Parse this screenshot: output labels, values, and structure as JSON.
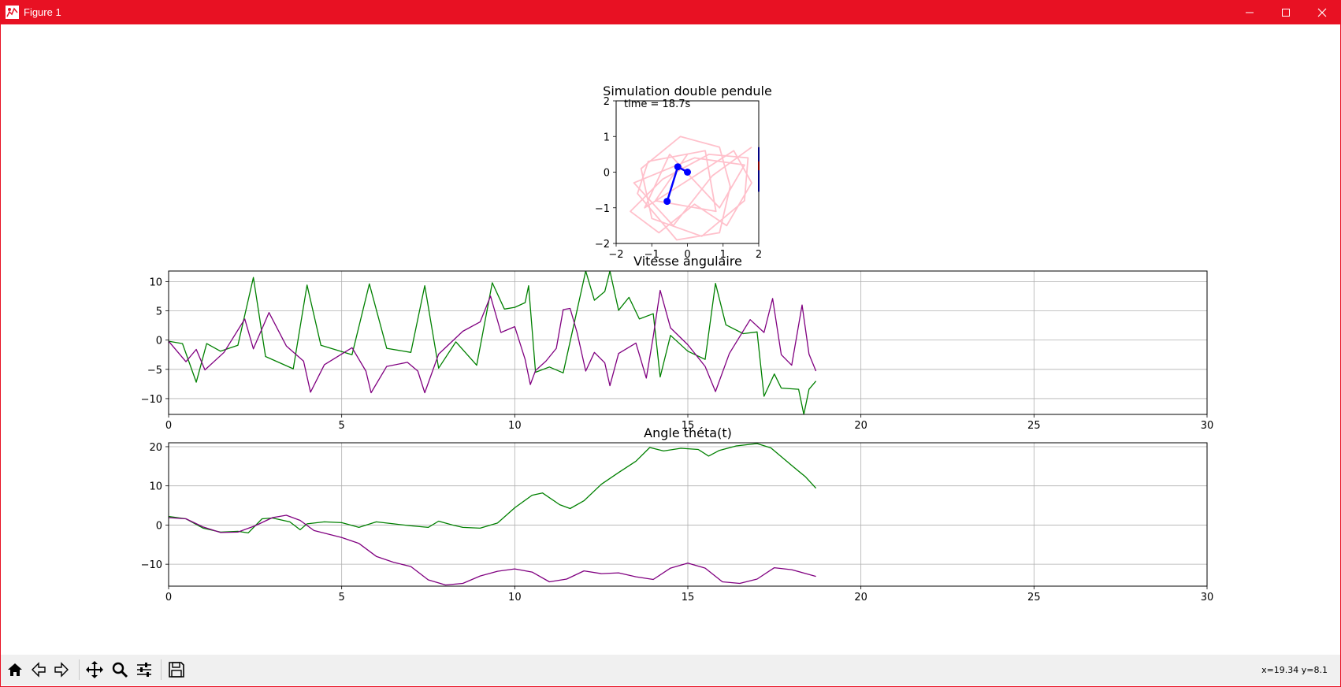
{
  "window": {
    "title": "Figure 1",
    "controls": {
      "minimize": "minimize-icon",
      "maximize": "maximize-icon",
      "close": "close-icon"
    },
    "accent": "#e81123"
  },
  "toolbar": {
    "buttons": [
      "home-icon",
      "back-icon",
      "forward-icon",
      "pan-icon",
      "zoom-icon",
      "configure-subplots-icon",
      "save-icon"
    ],
    "coords": "x=19.34 y=8.1"
  },
  "chart_data": [
    {
      "type": "line",
      "title": "Simulation double pendule",
      "annotation": "time = 18.7s",
      "xlim": [
        -2,
        2
      ],
      "ylim": [
        -2,
        2
      ],
      "xticks": [
        "−2",
        "−1",
        "0",
        "1",
        "2"
      ],
      "yticks": [
        "2",
        "1",
        "0",
        "−1",
        "−2"
      ],
      "grid": false,
      "series": [
        {
          "color": "#ffc0cb",
          "points": [
            [
              0,
              0.5
            ],
            [
              -0.9,
              -0.8
            ],
            [
              0.8,
              -1.1
            ],
            [
              0.5,
              0.6
            ],
            [
              -1.1,
              0.3
            ],
            [
              -1.4,
              -0.6
            ],
            [
              -0.3,
              -1.9
            ],
            [
              0.9,
              -1.7
            ],
            [
              1.2,
              -0.4
            ],
            [
              0.9,
              0.7
            ],
            [
              -0.2,
              1.0
            ],
            [
              -1.3,
              0.1
            ],
            [
              -1.0,
              -1.3
            ],
            [
              0.4,
              -1.8
            ],
            [
              1.6,
              -0.8
            ],
            [
              1.7,
              0.4
            ],
            [
              0.6,
              0.5
            ],
            [
              -0.7,
              -0.2
            ],
            [
              -1.6,
              -1.1
            ],
            [
              -0.8,
              -1.7
            ],
            [
              0.2,
              -0.9
            ],
            [
              1.1,
              -1.5
            ],
            [
              1.8,
              -0.3
            ],
            [
              1.3,
              0.6
            ],
            [
              -0.1,
              -0.3
            ],
            [
              -1.2,
              -1.0
            ],
            [
              -0.5,
              0.5
            ],
            [
              0.9,
              -1.0
            ],
            [
              1.6,
              0.2
            ],
            [
              0.2,
              0.4
            ],
            [
              -1.5,
              -0.3
            ],
            [
              -0.4,
              -1.5
            ],
            [
              0.7,
              -0.1
            ],
            [
              1.8,
              0.7
            ]
          ]
        }
      ],
      "pendulum": {
        "origin": [
          0,
          0
        ],
        "bob1": [
          -0.27,
          0.15
        ],
        "bob2": [
          -0.57,
          -0.82
        ],
        "color": "#0000ff"
      }
    },
    {
      "type": "line",
      "title": "Vitesse angulaire",
      "xlim": [
        0,
        30
      ],
      "ylim": [
        -12.7,
        11.8
      ],
      "xticks": [
        "0",
        "5",
        "10",
        "15",
        "20",
        "25",
        "30"
      ],
      "yticks": [
        "10",
        "5",
        "0",
        "−5",
        "−10"
      ],
      "grid": true,
      "series": [
        {
          "color": "#008000",
          "points": [
            [
              0,
              -0.2
            ],
            [
              0.4,
              -0.6
            ],
            [
              0.8,
              -7.2
            ],
            [
              1.1,
              -0.6
            ],
            [
              1.5,
              -1.9
            ],
            [
              2.0,
              -0.9
            ],
            [
              2.45,
              10.7
            ],
            [
              2.8,
              -2.8
            ],
            [
              3.6,
              -4.9
            ],
            [
              4.0,
              9.4
            ],
            [
              4.4,
              -0.9
            ],
            [
              5.3,
              -2.5
            ],
            [
              5.8,
              9.6
            ],
            [
              6.3,
              -1.4
            ],
            [
              7.0,
              -2.1
            ],
            [
              7.4,
              9.3
            ],
            [
              7.8,
              -4.8
            ],
            [
              8.3,
              -0.3
            ],
            [
              8.9,
              -4.3
            ],
            [
              9.35,
              9.8
            ],
            [
              9.7,
              5.3
            ],
            [
              10.0,
              5.6
            ],
            [
              10.3,
              6.4
            ],
            [
              10.4,
              9.3
            ],
            [
              10.6,
              -5.5
            ],
            [
              11.0,
              -4.6
            ],
            [
              11.4,
              -5.6
            ],
            [
              11.8,
              5.1
            ],
            [
              12.05,
              11.8
            ],
            [
              12.3,
              6.8
            ],
            [
              12.6,
              8.3
            ],
            [
              12.75,
              11.8
            ],
            [
              13.0,
              5.1
            ],
            [
              13.3,
              7.3
            ],
            [
              13.6,
              3.6
            ],
            [
              14.0,
              4.5
            ],
            [
              14.2,
              -6.3
            ],
            [
              14.5,
              0.8
            ],
            [
              15.0,
              -1.9
            ],
            [
              15.5,
              -3.3
            ],
            [
              15.8,
              9.7
            ],
            [
              16.1,
              2.6
            ],
            [
              16.6,
              1.1
            ],
            [
              17.0,
              1.4
            ],
            [
              17.2,
              -9.6
            ],
            [
              17.5,
              -5.8
            ],
            [
              17.7,
              -8.2
            ],
            [
              18.2,
              -8.4
            ],
            [
              18.35,
              -12.7
            ],
            [
              18.5,
              -8.4
            ],
            [
              18.7,
              -7.0
            ]
          ]
        },
        {
          "color": "#800080",
          "points": [
            [
              0,
              -0.2
            ],
            [
              0.5,
              -3.7
            ],
            [
              0.8,
              -1.6
            ],
            [
              1.05,
              -5.1
            ],
            [
              1.6,
              -2.1
            ],
            [
              2.2,
              3.6
            ],
            [
              2.45,
              -1.5
            ],
            [
              2.9,
              4.7
            ],
            [
              3.4,
              -1.0
            ],
            [
              3.9,
              -3.6
            ],
            [
              4.1,
              -8.9
            ],
            [
              4.5,
              -4.2
            ],
            [
              5.3,
              -1.3
            ],
            [
              5.7,
              -5.3
            ],
            [
              5.85,
              -9.0
            ],
            [
              6.3,
              -4.5
            ],
            [
              6.9,
              -3.8
            ],
            [
              7.2,
              -5.3
            ],
            [
              7.4,
              -9.0
            ],
            [
              7.8,
              -2.4
            ],
            [
              8.5,
              1.5
            ],
            [
              9.0,
              3.1
            ],
            [
              9.3,
              7.5
            ],
            [
              9.6,
              1.3
            ],
            [
              10.0,
              2.3
            ],
            [
              10.3,
              -3.3
            ],
            [
              10.45,
              -7.6
            ],
            [
              10.6,
              -5.2
            ],
            [
              10.9,
              -3.6
            ],
            [
              11.2,
              -1.4
            ],
            [
              11.4,
              5.2
            ],
            [
              11.6,
              5.4
            ],
            [
              11.8,
              1.3
            ],
            [
              12.05,
              -5.3
            ],
            [
              12.3,
              -2.1
            ],
            [
              12.6,
              -3.9
            ],
            [
              12.75,
              -7.8
            ],
            [
              13.0,
              -2.3
            ],
            [
              13.5,
              -0.5
            ],
            [
              13.8,
              -6.5
            ],
            [
              14.0,
              0.6
            ],
            [
              14.2,
              8.5
            ],
            [
              14.5,
              2.1
            ],
            [
              15.0,
              -0.8
            ],
            [
              15.5,
              -4.5
            ],
            [
              15.8,
              -8.8
            ],
            [
              16.2,
              -2.3
            ],
            [
              16.8,
              3.5
            ],
            [
              17.2,
              1.3
            ],
            [
              17.45,
              7.1
            ],
            [
              17.7,
              -2.5
            ],
            [
              18.0,
              -4.3
            ],
            [
              18.3,
              6.0
            ],
            [
              18.5,
              -2.4
            ],
            [
              18.7,
              -5.3
            ]
          ]
        }
      ]
    },
    {
      "type": "line",
      "title": "Angle théta(t)",
      "xlim": [
        0,
        30
      ],
      "ylim": [
        -15.6,
        21
      ],
      "xticks": [
        "0",
        "5",
        "10",
        "15",
        "20",
        "25",
        "30"
      ],
      "yticks": [
        "20",
        "10",
        "0",
        "−10"
      ],
      "grid": true,
      "series": [
        {
          "color": "#008000",
          "points": [
            [
              0,
              2.2
            ],
            [
              0.5,
              1.6
            ],
            [
              1.0,
              -0.8
            ],
            [
              1.5,
              -1.8
            ],
            [
              2.0,
              -1.6
            ],
            [
              2.3,
              -2.0
            ],
            [
              2.7,
              1.6
            ],
            [
              3.0,
              1.8
            ],
            [
              3.5,
              0.8
            ],
            [
              3.8,
              -1.2
            ],
            [
              4.0,
              0.3
            ],
            [
              4.5,
              0.8
            ],
            [
              5.0,
              0.6
            ],
            [
              5.5,
              -0.6
            ],
            [
              6.0,
              0.8
            ],
            [
              6.5,
              0.3
            ],
            [
              7.0,
              -0.2
            ],
            [
              7.5,
              -0.6
            ],
            [
              7.8,
              1.0
            ],
            [
              8.2,
              0.0
            ],
            [
              8.5,
              -0.6
            ],
            [
              9.0,
              -0.8
            ],
            [
              9.5,
              0.5
            ],
            [
              10.0,
              4.4
            ],
            [
              10.5,
              7.6
            ],
            [
              10.8,
              8.2
            ],
            [
              11.3,
              5.2
            ],
            [
              11.6,
              4.2
            ],
            [
              12.0,
              6.2
            ],
            [
              12.5,
              10.4
            ],
            [
              13.0,
              13.4
            ],
            [
              13.5,
              16.3
            ],
            [
              13.9,
              19.8
            ],
            [
              14.3,
              18.9
            ],
            [
              14.8,
              19.6
            ],
            [
              15.3,
              19.3
            ],
            [
              15.6,
              17.6
            ],
            [
              15.9,
              19.0
            ],
            [
              16.4,
              20.2
            ],
            [
              17.0,
              20.8
            ],
            [
              17.4,
              19.7
            ],
            [
              18.0,
              15.2
            ],
            [
              18.4,
              12.3
            ],
            [
              18.7,
              9.4
            ]
          ]
        },
        {
          "color": "#800080",
          "points": [
            [
              0,
              1.9
            ],
            [
              0.5,
              1.6
            ],
            [
              1.0,
              -0.5
            ],
            [
              1.5,
              -1.9
            ],
            [
              2.0,
              -1.8
            ],
            [
              2.5,
              -0.2
            ],
            [
              3.0,
              1.9
            ],
            [
              3.4,
              2.5
            ],
            [
              3.8,
              1.2
            ],
            [
              4.2,
              -1.4
            ],
            [
              5.0,
              -3.2
            ],
            [
              5.5,
              -4.7
            ],
            [
              6.0,
              -8.0
            ],
            [
              6.5,
              -9.5
            ],
            [
              7.0,
              -10.6
            ],
            [
              7.5,
              -14.0
            ],
            [
              8.0,
              -15.3
            ],
            [
              8.5,
              -14.9
            ],
            [
              9.0,
              -13.0
            ],
            [
              9.5,
              -11.8
            ],
            [
              10.0,
              -11.2
            ],
            [
              10.5,
              -12.0
            ],
            [
              11.0,
              -14.5
            ],
            [
              11.5,
              -13.8
            ],
            [
              12.0,
              -11.7
            ],
            [
              12.5,
              -12.4
            ],
            [
              13.0,
              -12.2
            ],
            [
              13.5,
              -13.2
            ],
            [
              14.0,
              -13.9
            ],
            [
              14.5,
              -11.0
            ],
            [
              15.0,
              -9.7
            ],
            [
              15.5,
              -11.0
            ],
            [
              16.0,
              -14.5
            ],
            [
              16.5,
              -14.9
            ],
            [
              17.0,
              -13.8
            ],
            [
              17.5,
              -10.9
            ],
            [
              18.0,
              -11.4
            ],
            [
              18.7,
              -13.1
            ]
          ]
        }
      ]
    }
  ]
}
